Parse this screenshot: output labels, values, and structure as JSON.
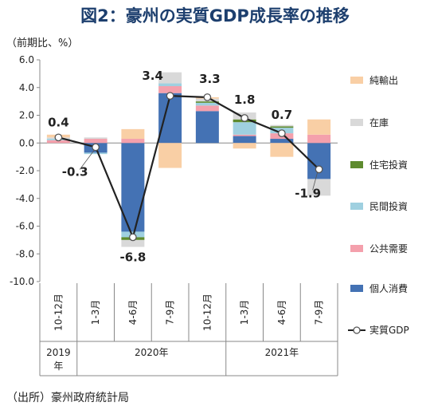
{
  "chart_data": {
    "type": "bar",
    "title": "図2：豪州の実質GDP成長率の推移",
    "unit_label": "（前期比、%）",
    "ylim": [
      -10.0,
      6.0
    ],
    "yticks": [
      "6.0",
      "4.0",
      "2.0",
      "0.0",
      "-2.0",
      "-4.0",
      "-6.0",
      "-8.0",
      "-10.0"
    ],
    "categories": [
      "10-12月",
      "1-3月",
      "4-6月",
      "7-9月",
      "10-12月",
      "1-3月",
      "4-6月",
      "7-9月"
    ],
    "years": [
      {
        "label": "2019\n年",
        "line1": "2019",
        "line2": "年",
        "span": [
          0,
          0
        ]
      },
      {
        "label": "2020年",
        "line1": "2020年",
        "span": [
          1,
          4
        ]
      },
      {
        "label": "2021年",
        "line1": "2021年",
        "span": [
          5,
          7
        ]
      }
    ],
    "series": [
      {
        "name": "個人消費",
        "color": "#4472b4",
        "values": [
          0.0,
          -0.7,
          -6.4,
          3.6,
          2.3,
          0.5,
          0.3,
          -2.6
        ]
      },
      {
        "name": "公共需要",
        "color": "#f4a0ac",
        "values": [
          0.2,
          0.3,
          0.3,
          0.5,
          0.4,
          0.1,
          0.4,
          0.6
        ]
      },
      {
        "name": "民間投資",
        "color": "#9fd0e0",
        "values": [
          0.1,
          -0.1,
          -0.4,
          0.2,
          0.2,
          0.9,
          0.4,
          0.0
        ]
      },
      {
        "name": "住宅投資",
        "color": "#5e8b2e",
        "values": [
          0.0,
          0.0,
          -0.2,
          0.0,
          0.1,
          0.2,
          0.1,
          0.0
        ]
      },
      {
        "name": "在庫",
        "color": "#d9d9d9",
        "values": [
          0.1,
          0.1,
          -0.5,
          0.8,
          0.2,
          0.5,
          0.1,
          -1.2
        ]
      },
      {
        "name": "純輸出",
        "color": "#f9cfa5",
        "values": [
          0.2,
          0.0,
          0.7,
          -1.8,
          0.1,
          -0.4,
          -1.0,
          1.1
        ]
      }
    ],
    "line_series": {
      "name": "実質GDP",
      "color": "#222222",
      "values": [
        0.4,
        -0.3,
        -6.8,
        3.4,
        3.3,
        1.8,
        0.7,
        -1.9
      ]
    },
    "data_labels": [
      "0.4",
      "-0.3",
      "-6.8",
      "3.4",
      "3.3",
      "1.8",
      "0.7",
      "-1.9"
    ],
    "legend_order": [
      "純輸出",
      "在庫",
      "住宅投資",
      "民間投資",
      "公共需要",
      "個人消費",
      "実質GDP"
    ],
    "legend_position": "right",
    "grid": false
  },
  "source": "（出所）豪州政府統計局"
}
